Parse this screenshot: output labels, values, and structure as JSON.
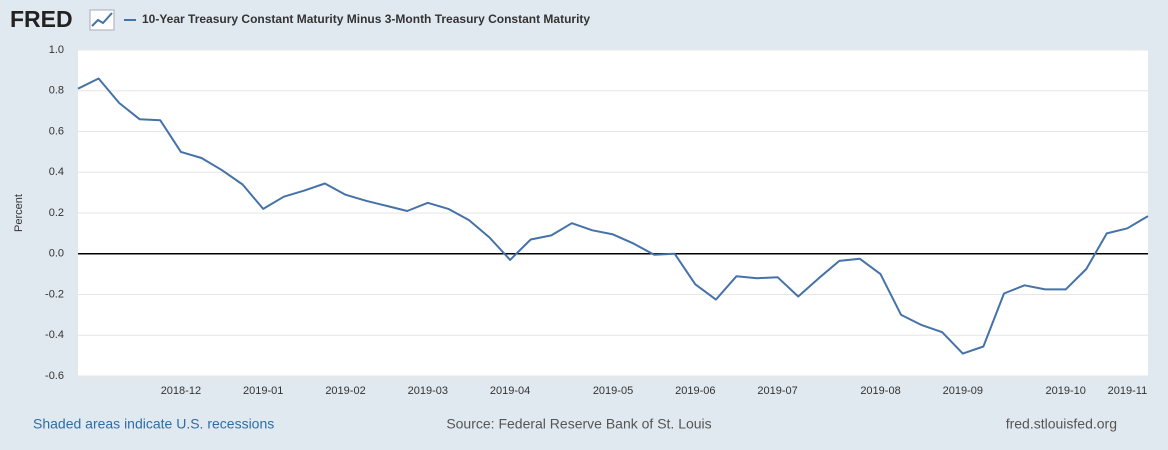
{
  "chart_data": {
    "type": "line",
    "brand": "FRED",
    "series": [
      {
        "name": "10-Year Treasury Constant Maturity Minus 3-Month Treasury Constant Maturity",
        "color": "#4572a7",
        "values": [
          0.81,
          0.86,
          0.74,
          0.66,
          0.655,
          0.5,
          0.47,
          0.41,
          0.34,
          0.22,
          0.28,
          0.31,
          0.345,
          0.29,
          0.26,
          0.235,
          0.21,
          0.25,
          0.22,
          0.165,
          0.08,
          -0.03,
          0.07,
          0.09,
          0.15,
          0.115,
          0.095,
          0.05,
          -0.005,
          0.0,
          -0.15,
          -0.225,
          -0.11,
          -0.12,
          -0.115,
          -0.21,
          -0.12,
          -0.035,
          -0.025,
          -0.1,
          -0.3,
          -0.35,
          -0.385,
          -0.49,
          -0.455,
          -0.195,
          -0.155,
          -0.175,
          -0.175,
          -0.075,
          0.1,
          0.125,
          0.185
        ]
      }
    ],
    "categories": [
      null,
      null,
      null,
      null,
      null,
      "2018-12",
      null,
      null,
      null,
      "2019-01",
      null,
      null,
      null,
      "2019-02",
      null,
      null,
      null,
      "2019-03",
      null,
      null,
      null,
      "2019-04",
      null,
      null,
      null,
      null,
      "2019-05",
      null,
      null,
      null,
      "2019-06",
      null,
      null,
      null,
      "2019-07",
      null,
      null,
      null,
      null,
      "2019-08",
      null,
      null,
      null,
      "2019-09",
      null,
      null,
      null,
      null,
      "2019-10",
      null,
      null,
      "2019-11",
      null
    ],
    "y_label": "Percent",
    "ylim": [
      -0.6,
      1.0
    ],
    "yticks": [
      {
        "value": 1.0,
        "label": "1.0"
      },
      0.8,
      0.6,
      0.4,
      0.2,
      {
        "value": 0,
        "label": "0.0"
      },
      -0.2,
      -0.4,
      -0.6
    ],
    "grid": true,
    "zero_line": true,
    "recession_note": "Shaded areas indicate U.S. recessions",
    "source": "Source: Federal Reserve Bank of St. Louis",
    "site": "fred.stlouisfed.org"
  }
}
